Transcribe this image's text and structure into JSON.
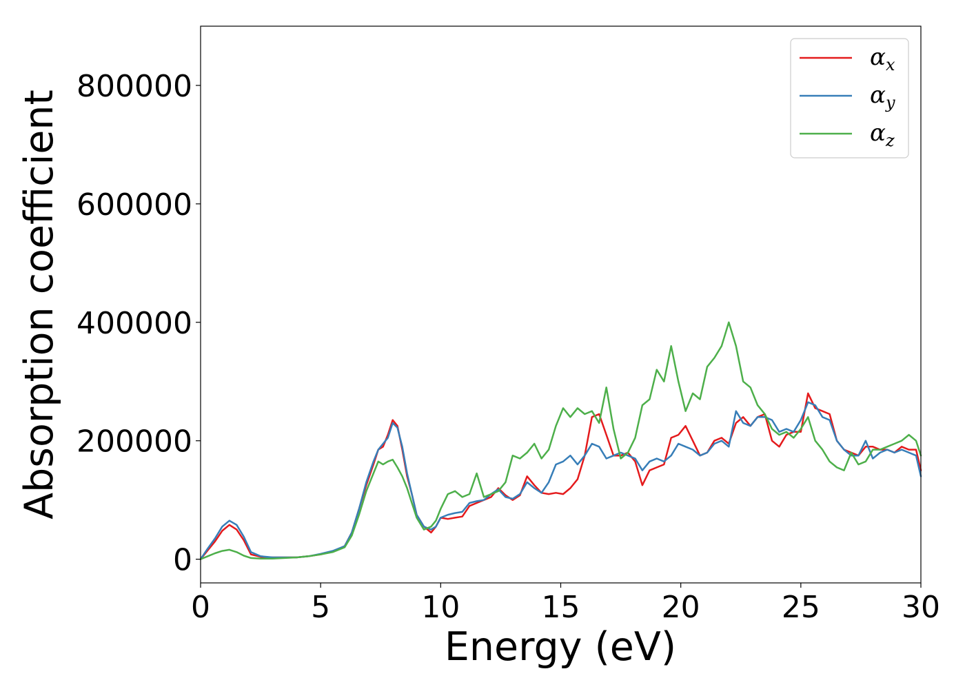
{
  "chart_data": {
    "type": "line",
    "xlabel": "Energy (eV)",
    "ylabel": "Absorption coefficient",
    "xlim": [
      0,
      30
    ],
    "ylim": [
      -40000,
      900000
    ],
    "xticks": [
      "0",
      "5",
      "10",
      "15",
      "20",
      "25",
      "30"
    ],
    "yticks": [
      "0",
      "200000",
      "400000",
      "600000",
      "800000"
    ],
    "legend_position": "top-right",
    "grid": false,
    "series": [
      {
        "name": "α",
        "subscript": "x",
        "color": "#e41a1c",
        "x": [
          0,
          0.3,
          0.6,
          0.9,
          1.2,
          1.5,
          1.8,
          2.1,
          2.5,
          3,
          3.5,
          4,
          4.5,
          5,
          5.5,
          6,
          6.3,
          6.6,
          6.9,
          7.2,
          7.4,
          7.6,
          7.8,
          8,
          8.2,
          8.4,
          8.6,
          8.8,
          9,
          9.3,
          9.6,
          9.8,
          10,
          10.3,
          10.6,
          10.9,
          11.2,
          11.5,
          11.8,
          12.1,
          12.4,
          12.7,
          13,
          13.3,
          13.6,
          13.9,
          14.2,
          14.5,
          14.8,
          15.1,
          15.4,
          15.7,
          16,
          16.3,
          16.6,
          16.9,
          17.2,
          17.5,
          17.8,
          18.1,
          18.4,
          18.7,
          19,
          19.3,
          19.6,
          19.9,
          20.2,
          20.5,
          20.8,
          21.1,
          21.4,
          21.7,
          22,
          22.3,
          22.6,
          22.9,
          23.2,
          23.5,
          23.8,
          24.1,
          24.4,
          24.7,
          25,
          25.3,
          25.6,
          25.9,
          26.2,
          26.5,
          26.8,
          27.1,
          27.4,
          27.7,
          28,
          28.3,
          28.6,
          28.9,
          29.2,
          29.5,
          29.8,
          30
        ],
        "y": [
          0,
          15000,
          30000,
          48000,
          58000,
          50000,
          32000,
          8000,
          4000,
          3000,
          3000,
          3000,
          5000,
          8000,
          13000,
          22000,
          45000,
          85000,
          125000,
          160000,
          185000,
          190000,
          210000,
          235000,
          225000,
          185000,
          140000,
          110000,
          75000,
          55000,
          45000,
          55000,
          70000,
          68000,
          70000,
          72000,
          90000,
          95000,
          100000,
          105000,
          120000,
          108000,
          100000,
          108000,
          140000,
          125000,
          112000,
          110000,
          112000,
          110000,
          120000,
          135000,
          175000,
          240000,
          245000,
          210000,
          175000,
          175000,
          180000,
          165000,
          125000,
          150000,
          155000,
          160000,
          205000,
          210000,
          225000,
          200000,
          175000,
          180000,
          200000,
          205000,
          195000,
          230000,
          240000,
          225000,
          240000,
          245000,
          200000,
          190000,
          210000,
          215000,
          215000,
          280000,
          255000,
          250000,
          245000,
          200000,
          185000,
          180000,
          175000,
          190000,
          190000,
          185000,
          185000,
          180000,
          190000,
          185000,
          185000,
          150000
        ]
      },
      {
        "name": "α",
        "subscript": "y",
        "color": "#377eb8",
        "x": [
          0,
          0.3,
          0.6,
          0.9,
          1.2,
          1.5,
          1.8,
          2.1,
          2.5,
          3,
          3.5,
          4,
          4.5,
          5,
          5.5,
          6,
          6.3,
          6.6,
          6.9,
          7.2,
          7.4,
          7.6,
          7.8,
          8,
          8.2,
          8.4,
          8.6,
          8.8,
          9,
          9.3,
          9.6,
          9.8,
          10,
          10.3,
          10.6,
          10.9,
          11.2,
          11.5,
          11.8,
          12.1,
          12.4,
          12.7,
          13,
          13.3,
          13.6,
          13.9,
          14.2,
          14.5,
          14.8,
          15.1,
          15.4,
          15.7,
          16,
          16.3,
          16.6,
          16.9,
          17.2,
          17.5,
          17.8,
          18.1,
          18.4,
          18.7,
          19,
          19.3,
          19.6,
          19.9,
          20.2,
          20.5,
          20.8,
          21.1,
          21.4,
          21.7,
          22,
          22.3,
          22.6,
          22.9,
          23.2,
          23.5,
          23.8,
          24.1,
          24.4,
          24.7,
          25,
          25.3,
          25.6,
          25.9,
          26.2,
          26.5,
          26.8,
          27.1,
          27.4,
          27.7,
          28,
          28.3,
          28.6,
          28.9,
          29.2,
          29.5,
          29.8,
          30
        ],
        "y": [
          0,
          18000,
          35000,
          55000,
          65000,
          58000,
          38000,
          12000,
          5000,
          3000,
          3000,
          3000,
          5000,
          9000,
          14000,
          22000,
          45000,
          85000,
          130000,
          165000,
          185000,
          195000,
          205000,
          230000,
          222000,
          190000,
          145000,
          110000,
          75000,
          55000,
          50000,
          55000,
          70000,
          75000,
          78000,
          80000,
          95000,
          98000,
          100000,
          110000,
          118000,
          105000,
          102000,
          110000,
          130000,
          120000,
          112000,
          130000,
          160000,
          165000,
          175000,
          160000,
          175000,
          195000,
          190000,
          170000,
          175000,
          180000,
          175000,
          170000,
          150000,
          165000,
          170000,
          165000,
          175000,
          195000,
          190000,
          185000,
          175000,
          180000,
          195000,
          200000,
          190000,
          250000,
          230000,
          225000,
          240000,
          240000,
          235000,
          215000,
          220000,
          215000,
          235000,
          265000,
          260000,
          240000,
          235000,
          200000,
          185000,
          175000,
          175000,
          200000,
          170000,
          180000,
          185000,
          180000,
          185000,
          180000,
          175000,
          140000
        ]
      },
      {
        "name": "α",
        "subscript": "z",
        "color": "#4daf4a",
        "x": [
          0,
          0.3,
          0.6,
          0.9,
          1.2,
          1.5,
          1.8,
          2.1,
          2.5,
          3,
          3.5,
          4,
          4.5,
          5,
          5.5,
          6,
          6.3,
          6.6,
          6.9,
          7.2,
          7.4,
          7.6,
          7.8,
          8,
          8.2,
          8.4,
          8.6,
          8.8,
          9,
          9.3,
          9.6,
          9.8,
          10,
          10.3,
          10.6,
          10.9,
          11.2,
          11.5,
          11.8,
          12.1,
          12.4,
          12.7,
          13,
          13.3,
          13.6,
          13.9,
          14.2,
          14.5,
          14.8,
          15.1,
          15.4,
          15.7,
          16,
          16.3,
          16.6,
          16.9,
          17.2,
          17.5,
          17.8,
          18.1,
          18.4,
          18.7,
          19,
          19.3,
          19.6,
          19.9,
          20.2,
          20.5,
          20.8,
          21.1,
          21.4,
          21.7,
          22,
          22.3,
          22.6,
          22.9,
          23.2,
          23.5,
          23.8,
          24.1,
          24.4,
          24.7,
          25,
          25.3,
          25.6,
          25.9,
          26.2,
          26.5,
          26.8,
          27.1,
          27.4,
          27.7,
          28,
          28.3,
          28.6,
          28.9,
          29.2,
          29.5,
          29.8,
          30
        ],
        "y": [
          0,
          5000,
          10000,
          14000,
          16000,
          12000,
          6000,
          2000,
          1000,
          1000,
          2000,
          3000,
          5000,
          8000,
          12000,
          20000,
          40000,
          75000,
          115000,
          145000,
          165000,
          160000,
          165000,
          168000,
          155000,
          140000,
          120000,
          95000,
          70000,
          50000,
          55000,
          65000,
          85000,
          110000,
          115000,
          105000,
          110000,
          145000,
          105000,
          110000,
          115000,
          130000,
          175000,
          170000,
          180000,
          195000,
          170000,
          185000,
          225000,
          255000,
          240000,
          255000,
          245000,
          250000,
          230000,
          290000,
          220000,
          170000,
          180000,
          205000,
          260000,
          270000,
          320000,
          300000,
          360000,
          300000,
          250000,
          280000,
          270000,
          325000,
          340000,
          360000,
          400000,
          360000,
          300000,
          290000,
          260000,
          245000,
          220000,
          210000,
          215000,
          205000,
          220000,
          240000,
          200000,
          185000,
          165000,
          155000,
          150000,
          180000,
          160000,
          165000,
          185000,
          185000,
          190000,
          195000,
          200000,
          210000,
          200000,
          175000
        ]
      }
    ]
  }
}
